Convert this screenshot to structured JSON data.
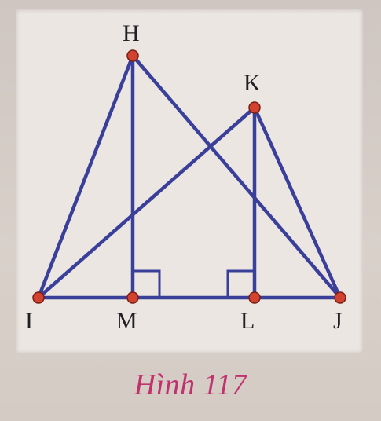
{
  "figure": {
    "caption": "Hình 117",
    "colors": {
      "line": "#3a3f9a",
      "point": "#d1422f",
      "point_outline": "#7a1f16",
      "label": "#1f1f24",
      "caption": "#c0326e"
    }
  },
  "points": {
    "H": "H",
    "K": "K",
    "I": "I",
    "M": "M",
    "L": "L",
    "J": "J"
  },
  "segments": [
    "IH",
    "HJ",
    "IK",
    "KJ",
    "HM",
    "KL",
    "IJ"
  ],
  "right_angles": [
    "HMJ",
    "KLI"
  ]
}
